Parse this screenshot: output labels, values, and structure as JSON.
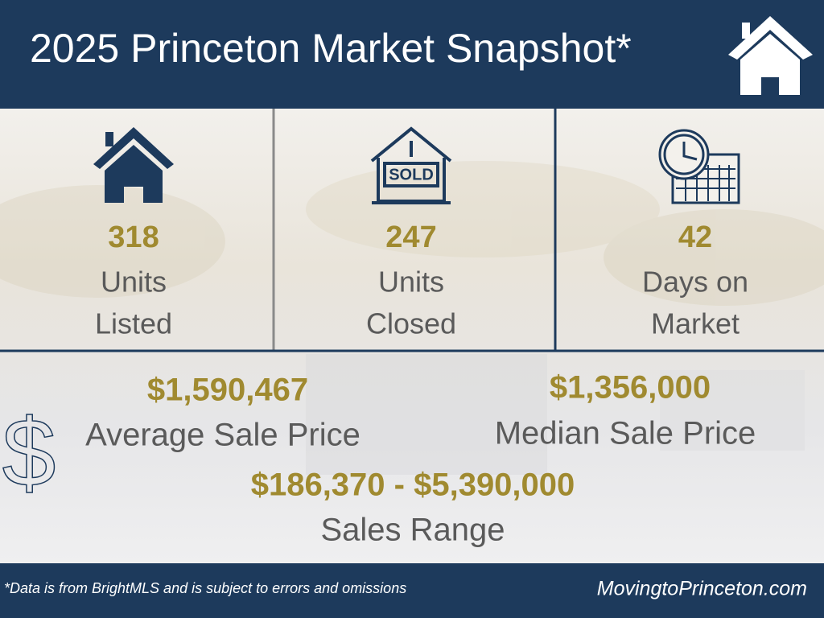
{
  "header": {
    "title": "2025 Princeton Market Snapshot*"
  },
  "stats": [
    {
      "value": "318",
      "label": [
        "Units",
        "Listed"
      ]
    },
    {
      "value": "247",
      "label": [
        "Units",
        "Closed"
      ],
      "icon_text": "SOLD"
    },
    {
      "value": "42",
      "label": [
        "Days on",
        "Market"
      ]
    }
  ],
  "prices": [
    {
      "value": "$1,590,467",
      "label": "Average Sale Price"
    },
    {
      "value": "$1,356,000",
      "label": "Median Sale Price"
    },
    {
      "value": "$186,370 - $5,390,000",
      "label": "Sales Range"
    }
  ],
  "footer": {
    "note": "*Data is from BrightMLS and is subject to errors and omissions",
    "site": "MovingtoPrinceton.com"
  }
}
